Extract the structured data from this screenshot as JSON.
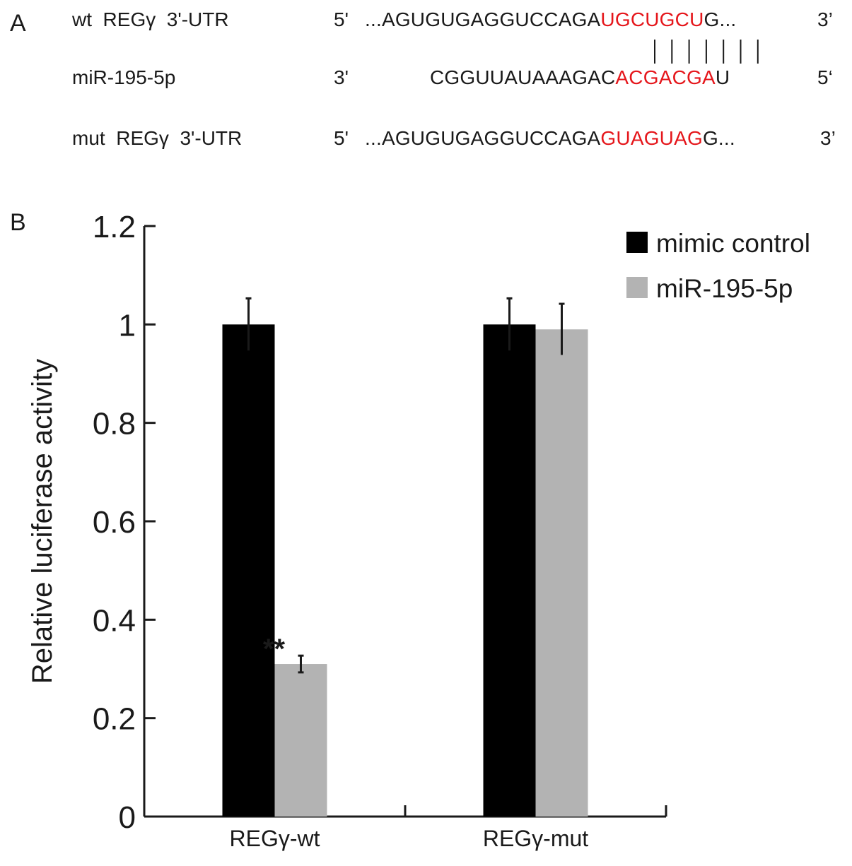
{
  "panel_a": {
    "label": "A",
    "rows": [
      {
        "name": "wt  REGγ  3'-UTR",
        "end5": "5'",
        "seq_pre": "...AGUGUGAGGUCCAGA",
        "seq_hl": "UGCUGCU",
        "seq_post": "G...",
        "end3": "3’"
      },
      {
        "name": "miR-195-5p",
        "end5": "3'",
        "seq_pre": "CGGUUAUAAAGAC",
        "seq_hl": "ACGACGA",
        "seq_post": "U",
        "end3": "5‘"
      },
      {
        "name": "mut  REGγ  3'-UTR",
        "end5": "5'",
        "seq_pre": "...AGUGUGAGGUCCAGA",
        "seq_hl": "GUAGUAG",
        "seq_post": "G...",
        "end3": "3’"
      }
    ],
    "highlight_color": "#e5161b"
  },
  "panel_b": {
    "label": "B"
  },
  "chart_data": {
    "type": "bar",
    "ylabel": "Relative luciferase activity",
    "ylim": [
      0,
      1.2
    ],
    "yticks": [
      0,
      0.2,
      0.4,
      0.6,
      0.8,
      1,
      1.2
    ],
    "ytick_labels": [
      "0",
      "0.2",
      "0.4",
      "0.6",
      "0.8",
      "1",
      "1.2"
    ],
    "categories": [
      "REGγ-wt",
      "REGγ-mut"
    ],
    "series": [
      {
        "name": "mimic control",
        "color": "#000000",
        "values": [
          1.0,
          1.0
        ],
        "errors": [
          0.053,
          0.053
        ]
      },
      {
        "name": "miR-195-5p",
        "color": "#b3b3b3",
        "values": [
          0.31,
          0.99
        ],
        "errors": [
          0.017,
          0.052
        ]
      }
    ],
    "annotations": [
      {
        "category": 0,
        "series": 1,
        "text": "**"
      }
    ],
    "legend_position": "top-right",
    "grid": false
  }
}
